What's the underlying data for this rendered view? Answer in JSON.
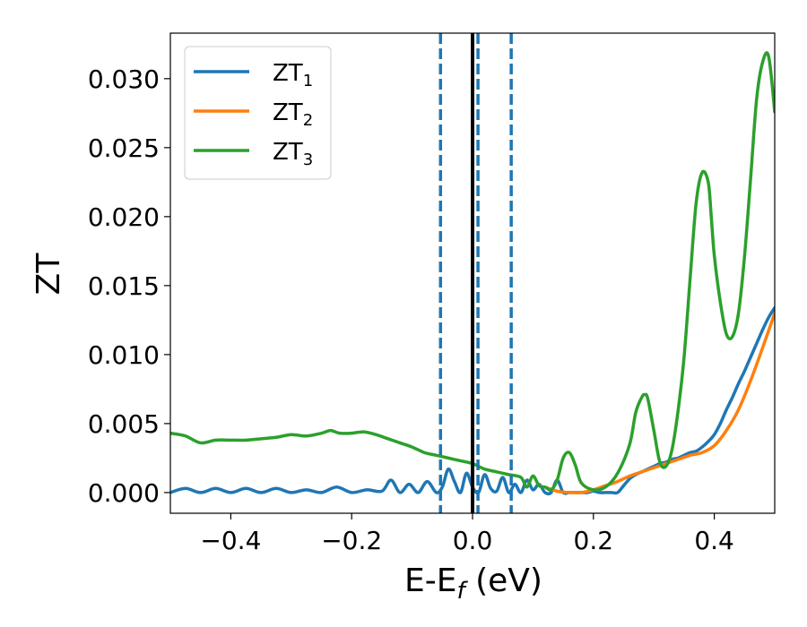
{
  "chart_data": {
    "type": "line",
    "title": "",
    "xlabel": "E-E",
    "xlabel_sub": "f",
    "xlabel_suffix": " (eV)",
    "ylabel": "ZT",
    "xlim": [
      -0.5,
      0.5
    ],
    "ylim": [
      -0.0015,
      0.0333
    ],
    "grid": false,
    "legend_position": "top-left",
    "xticks": [
      -0.4,
      -0.2,
      0.0,
      0.2,
      0.4
    ],
    "xtick_labels": [
      "−0.4",
      "−0.2",
      "0.0",
      "0.2",
      "0.4"
    ],
    "yticks": [
      0.0,
      0.005,
      0.01,
      0.015,
      0.02,
      0.025,
      0.03
    ],
    "ytick_labels": [
      "0.000",
      "0.005",
      "0.010",
      "0.015",
      "0.020",
      "0.025",
      "0.030"
    ],
    "vlines": [
      {
        "x": 0.0,
        "style": "solid",
        "color": "#000000"
      },
      {
        "x": -0.053,
        "style": "dashed",
        "color": "#1f77b4"
      },
      {
        "x": 0.009,
        "style": "dashed",
        "color": "#1f77b4"
      },
      {
        "x": 0.064,
        "style": "dashed",
        "color": "#1f77b4"
      }
    ],
    "series": [
      {
        "name": "ZT",
        "name_sub": "1",
        "color": "#1f77b4",
        "x": [
          -0.5,
          -0.475,
          -0.45,
          -0.425,
          -0.4,
          -0.375,
          -0.35,
          -0.325,
          -0.3,
          -0.275,
          -0.25,
          -0.225,
          -0.2,
          -0.175,
          -0.15,
          -0.135,
          -0.12,
          -0.105,
          -0.09,
          -0.075,
          -0.06,
          -0.05,
          -0.04,
          -0.03,
          -0.02,
          -0.01,
          0.0,
          0.01,
          0.02,
          0.03,
          0.04,
          0.05,
          0.06,
          0.07,
          0.08,
          0.09,
          0.1,
          0.11,
          0.12,
          0.13,
          0.14,
          0.15,
          0.16,
          0.17,
          0.18,
          0.19,
          0.2,
          0.21,
          0.22,
          0.23,
          0.24,
          0.25,
          0.26,
          0.27,
          0.28,
          0.29,
          0.3,
          0.31,
          0.32,
          0.33,
          0.34,
          0.35,
          0.36,
          0.37,
          0.38,
          0.39,
          0.4,
          0.41,
          0.42,
          0.43,
          0.44,
          0.45,
          0.46,
          0.47,
          0.48,
          0.49,
          0.5
        ],
        "y": [
          0.0,
          0.0003,
          0.0,
          0.0003,
          0.0,
          0.0003,
          0.0,
          0.0003,
          0.0,
          0.0002,
          0.0,
          0.0004,
          0.0,
          0.0002,
          0.0001,
          0.0009,
          0.0,
          0.0006,
          0.0,
          0.0008,
          0.0,
          0.0004,
          0.0017,
          0.0008,
          0.0,
          0.0014,
          0.0004,
          0.0,
          0.0013,
          0.0003,
          0.0001,
          0.0011,
          0.0,
          0.0006,
          0.0,
          0.0009,
          0.0002,
          0.0006,
          0.0,
          0.0,
          0.0009,
          0.0,
          0.0,
          0.0,
          0.0,
          0.0,
          0.0001,
          0.0,
          0.0,
          0.0,
          0.0,
          0.0005,
          0.001,
          0.0013,
          0.0015,
          0.0017,
          0.0019,
          0.0021,
          0.0022,
          0.0024,
          0.0025,
          0.0027,
          0.0029,
          0.003,
          0.0033,
          0.0037,
          0.0042,
          0.005,
          0.006,
          0.0069,
          0.0079,
          0.0088,
          0.0098,
          0.0108,
          0.0118,
          0.0127,
          0.0134
        ]
      },
      {
        "name": "ZT",
        "name_sub": "2",
        "color": "#ff7f0e",
        "x": [
          0.12,
          0.14,
          0.16,
          0.18,
          0.2,
          0.22,
          0.24,
          0.26,
          0.28,
          0.3,
          0.32,
          0.34,
          0.36,
          0.38,
          0.4,
          0.42,
          0.44,
          0.46,
          0.48,
          0.5
        ],
        "y": [
          0.0004,
          0.0001,
          0.0,
          0.0,
          0.0002,
          0.0005,
          0.0008,
          0.0012,
          0.0015,
          0.0018,
          0.0021,
          0.0024,
          0.0027,
          0.0029,
          0.0034,
          0.0045,
          0.006,
          0.0081,
          0.0105,
          0.013
        ]
      },
      {
        "name": "ZT",
        "name_sub": "3",
        "color": "#2ca02c",
        "x": [
          -0.5,
          -0.475,
          -0.45,
          -0.425,
          -0.4,
          -0.375,
          -0.35,
          -0.325,
          -0.3,
          -0.275,
          -0.25,
          -0.235,
          -0.22,
          -0.2,
          -0.18,
          -0.16,
          -0.14,
          -0.12,
          -0.1,
          -0.08,
          -0.06,
          -0.04,
          -0.02,
          0.0,
          0.02,
          0.04,
          0.06,
          0.08,
          0.09,
          0.1,
          0.11,
          0.12,
          0.13,
          0.14,
          0.15,
          0.16,
          0.17,
          0.18,
          0.2,
          0.22,
          0.24,
          0.26,
          0.27,
          0.28,
          0.285,
          0.29,
          0.3,
          0.31,
          0.32,
          0.33,
          0.34,
          0.35,
          0.36,
          0.37,
          0.38,
          0.39,
          0.395,
          0.4,
          0.41,
          0.42,
          0.43,
          0.44,
          0.45,
          0.46,
          0.47,
          0.48,
          0.49,
          0.5
        ],
        "y": [
          0.0043,
          0.0041,
          0.0036,
          0.0038,
          0.0038,
          0.0038,
          0.0039,
          0.004,
          0.0042,
          0.0041,
          0.0043,
          0.0045,
          0.0043,
          0.0043,
          0.0044,
          0.0042,
          0.0039,
          0.0036,
          0.0033,
          0.0029,
          0.0027,
          0.0025,
          0.0023,
          0.0021,
          0.0017,
          0.0015,
          0.0013,
          0.0011,
          0.0004,
          0.0012,
          0.0005,
          0.0004,
          0.0002,
          0.0009,
          0.0025,
          0.0029,
          0.002,
          0.0007,
          0.0002,
          0.0004,
          0.0014,
          0.0035,
          0.0058,
          0.0069,
          0.0071,
          0.0068,
          0.0045,
          0.0022,
          0.0019,
          0.0031,
          0.0059,
          0.0098,
          0.0155,
          0.021,
          0.0232,
          0.0225,
          0.02,
          0.0172,
          0.0138,
          0.0115,
          0.0113,
          0.013,
          0.0171,
          0.0227,
          0.0285,
          0.0312,
          0.0316,
          0.0276
        ]
      }
    ]
  }
}
